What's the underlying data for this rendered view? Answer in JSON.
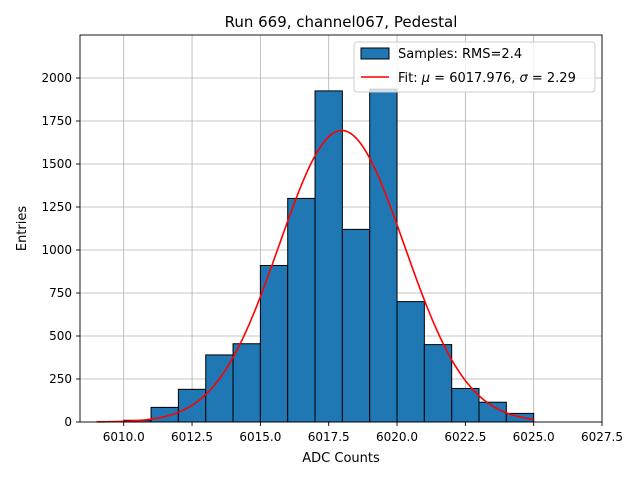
{
  "chart_data": {
    "type": "bar",
    "title": "Run 669, channel067, Pedestal",
    "xlabel": "ADC Counts",
    "ylabel": "Entries",
    "xlim": [
      6008.4,
      6027.5
    ],
    "ylim": [
      0,
      2250
    ],
    "grid": true,
    "legend_position": "top-right",
    "x_ticks": [
      6010.0,
      6012.5,
      6015.0,
      6017.5,
      6020.0,
      6022.5,
      6025.0,
      6027.5
    ],
    "x_tick_labels": [
      "6010.0",
      "6012.5",
      "6015.0",
      "6017.5",
      "6020.0",
      "6022.5",
      "6025.0",
      "6027.5"
    ],
    "y_ticks": [
      0,
      250,
      500,
      750,
      1000,
      1250,
      1500,
      1750,
      2000
    ],
    "y_tick_labels": [
      "0",
      "250",
      "500",
      "750",
      "1000",
      "1250",
      "1500",
      "1750",
      "2000"
    ],
    "histogram": {
      "label": "Samples: RMS=2.4",
      "color": "#1f77b4",
      "edge_color": "#000000",
      "bin_edges": [
        6009,
        6010,
        6011,
        6012,
        6013,
        6014,
        6015,
        6016,
        6017,
        6018,
        6019,
        6020,
        6021,
        6022,
        6023,
        6024,
        6025,
        6026
      ],
      "counts": [
        0,
        10,
        85,
        190,
        390,
        455,
        910,
        1300,
        1925,
        1120,
        1935,
        700,
        450,
        195,
        115,
        50,
        0
      ]
    },
    "fit": {
      "label": "Fit: μ = 6017.976, σ = 2.29",
      "label_prefix": "Fit: ",
      "mu_symbol": "μ",
      "mu_text": " = 6017.976, ",
      "sigma_symbol": "σ",
      "sigma_text": " = 2.29",
      "color": "#ff0000",
      "mu": 6017.976,
      "sigma": 2.29,
      "amplitude": 1695,
      "x_range": [
        6009,
        6025
      ]
    }
  }
}
